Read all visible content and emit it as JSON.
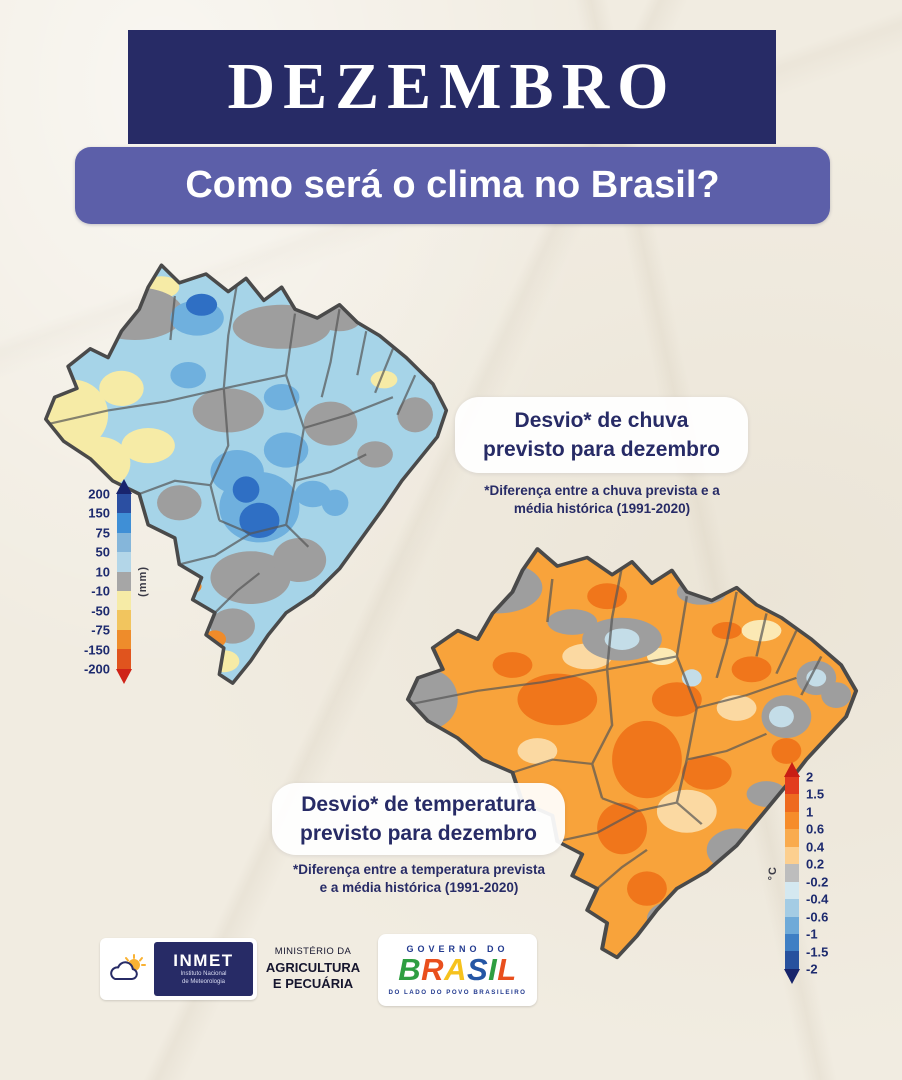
{
  "colors": {
    "background": "#f1ece1",
    "header_navy": "#272b66",
    "banner_purple": "#5c5fa9",
    "text_navy": "#272b66",
    "map_gray": "#9e9e9e",
    "rain_base_blue": "#a6d4e8",
    "temp_base_orange": "#f8a33b"
  },
  "header": {
    "month": "DEZEMBRO",
    "question": "Como será o clima no Brasil?"
  },
  "rain_panel": {
    "title_line1": "Desvio* de chuva",
    "title_line2": "previsto para dezembro",
    "note_line1": "*Diferença entre a chuva prevista e a",
    "note_line2": "média histórica (1991-2020)"
  },
  "temp_panel": {
    "title_line1": "Desvio* de temperatura",
    "title_line2": "previsto para dezembro",
    "note_line1": "*Diferença entre a temperatura prevista",
    "note_line2": "e a média histórica (1991-2020)"
  },
  "rain_legend": {
    "unit": "(mm)",
    "labels": [
      "200",
      "150",
      "75",
      "50",
      "10",
      "-10",
      "-50",
      "-75",
      "-150",
      "-200"
    ],
    "segment_colors": [
      "#2b4fa2",
      "#3f8fd6",
      "#85b6da",
      "#b3d6e8",
      "#a6a6a6",
      "#f6eba6",
      "#f2c55e",
      "#ee8c2b",
      "#e0541e"
    ],
    "arrow_top": "#18246e",
    "arrow_bottom": "#cf2318"
  },
  "temp_legend": {
    "unit": "°C",
    "labels": [
      "2",
      "1.5",
      "1",
      "0.6",
      "0.4",
      "0.2",
      "-0.2",
      "-0.4",
      "-0.6",
      "-1",
      "-1.5",
      "-2"
    ],
    "segment_colors": [
      "#e23c1e",
      "#ee6a1f",
      "#f68c2a",
      "#f9ab4e",
      "#fccf8f",
      "#bdbdbd",
      "#d4e8f0",
      "#a4cce4",
      "#6faad8",
      "#3f7fc4",
      "#27519e"
    ],
    "arrow_top": "#c81e14",
    "arrow_bottom": "#17246b"
  },
  "footer": {
    "inmet": {
      "name": "INMET",
      "sub1": "Instituto Nacional",
      "sub2": "de Meteorologia"
    },
    "ministry": {
      "line1": "MINISTÉRIO DA",
      "line2": "AGRICULTURA",
      "line3": "E PECUÁRIA"
    },
    "governo": {
      "top": "GOVERNO DO",
      "brand_letters": [
        {
          "ch": "B",
          "color": "#2e9e41"
        },
        {
          "ch": "R",
          "color": "#e94f1d"
        },
        {
          "ch": "A",
          "color": "#f6c21e"
        },
        {
          "ch": "S",
          "color": "#2456a5"
        },
        {
          "ch": "I",
          "color": "#2e9e41"
        },
        {
          "ch": "L",
          "color": "#e94f1d"
        }
      ],
      "bottom": "DO LADO DO POVO BRASILEIRO"
    }
  }
}
